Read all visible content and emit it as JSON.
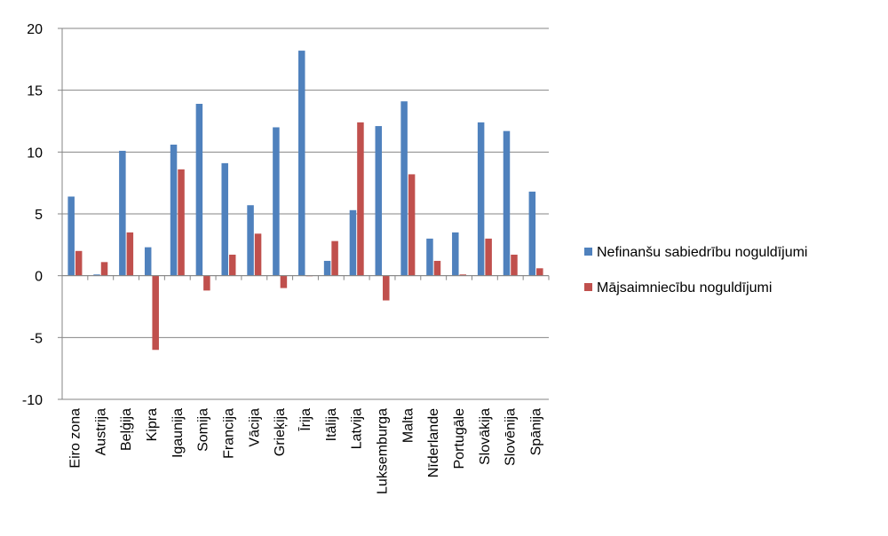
{
  "chart_data": {
    "type": "bar",
    "categories": [
      "Eiro zona",
      "Austrija",
      "Beļģija",
      "Kipra",
      "Igaunija",
      "Somija",
      "Francija",
      "Vācija",
      "Grieķija",
      "Īrija",
      "Itālija",
      "Latvija",
      "Luksemburga",
      "Malta",
      "Nīderlande",
      "Portugāle",
      "Slovākija",
      "Slovēnija",
      "Spānija"
    ],
    "series": [
      {
        "name": "Nefinanšu sabiedrību noguldījumi",
        "color": "#4f81bd",
        "values": [
          6.4,
          0.1,
          10.1,
          2.3,
          10.6,
          13.9,
          9.1,
          5.7,
          12.0,
          18.2,
          1.2,
          5.3,
          12.1,
          14.1,
          3.0,
          3.5,
          12.4,
          11.7,
          6.8
        ]
      },
      {
        "name": "Mājsaimniecību noguldījumi",
        "color": "#c0504d",
        "values": [
          2.0,
          1.1,
          3.5,
          -6.0,
          8.6,
          -1.2,
          1.7,
          3.4,
          -1.0,
          0.0,
          2.8,
          12.4,
          -2.0,
          8.2,
          1.2,
          0.1,
          3.0,
          1.7,
          0.6
        ]
      }
    ],
    "ylim": [
      -10,
      20
    ],
    "yticks": [
      -10,
      -5,
      0,
      5,
      10,
      15,
      20
    ],
    "grid": true,
    "legend": "right"
  }
}
